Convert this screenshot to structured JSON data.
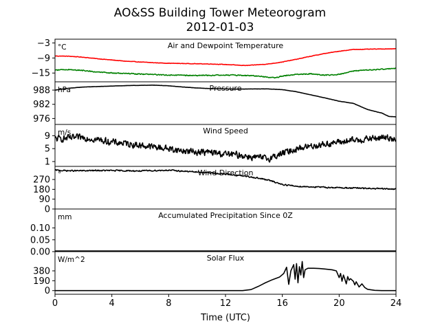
{
  "title_line1": "AO&SS Building Tower Meteorogram",
  "title_line2": "2012-01-03",
  "xlabel": "Time (UTC)",
  "chart_data": [
    {
      "id": "temp",
      "type": "line",
      "title": "Air and Dewpoint Temperature",
      "unit": "°C",
      "ylim": [
        -18.5,
        -1.5
      ],
      "yticks": [
        -15,
        -9,
        -3
      ],
      "ytick_labels": [
        "−15",
        "−9",
        "−3"
      ],
      "series": [
        {
          "color": "#ff0000",
          "noise": 0.12,
          "points": [
            [
              0,
              -8.2
            ],
            [
              1,
              -8.3
            ],
            [
              2,
              -8.7
            ],
            [
              3,
              -9.3
            ],
            [
              4,
              -9.8
            ],
            [
              5,
              -10.3
            ],
            [
              6,
              -10.6
            ],
            [
              7,
              -10.9
            ],
            [
              8,
              -11.1
            ],
            [
              9,
              -11.2
            ],
            [
              10,
              -11.3
            ],
            [
              11,
              -11.4
            ],
            [
              12,
              -11.6
            ],
            [
              13,
              -11.9
            ],
            [
              13.5,
              -12.0
            ],
            [
              14,
              -11.8
            ],
            [
              15,
              -11.4
            ],
            [
              16,
              -10.6
            ],
            [
              17,
              -9.5
            ],
            [
              18,
              -8.3
            ],
            [
              19,
              -7.2
            ],
            [
              20,
              -6.3
            ],
            [
              21,
              -5.6
            ],
            [
              22,
              -5.5
            ],
            [
              23,
              -5.4
            ],
            [
              24,
              -5.3
            ]
          ]
        },
        {
          "color": "#008000",
          "noise": 0.25,
          "points": [
            [
              0,
              -13.8
            ],
            [
              1,
              -13.6
            ],
            [
              2,
              -14.0
            ],
            [
              3,
              -14.6
            ],
            [
              4,
              -15.0
            ],
            [
              5,
              -15.2
            ],
            [
              6,
              -15.4
            ],
            [
              7,
              -15.6
            ],
            [
              8,
              -15.8
            ],
            [
              9,
              -15.9
            ],
            [
              10,
              -16.0
            ],
            [
              11,
              -15.9
            ],
            [
              12,
              -15.8
            ],
            [
              13,
              -15.9
            ],
            [
              14,
              -16.1
            ],
            [
              15,
              -16.6
            ],
            [
              15.5,
              -16.9
            ],
            [
              16,
              -16.2
            ],
            [
              17,
              -15.5
            ],
            [
              18,
              -15.3
            ],
            [
              19,
              -15.9
            ],
            [
              20,
              -15.5
            ],
            [
              21,
              -14.2
            ],
            [
              22,
              -13.8
            ],
            [
              23,
              -13.5
            ],
            [
              24,
              -13.1
            ]
          ]
        }
      ]
    },
    {
      "id": "pressure",
      "type": "line",
      "title": "Pressure",
      "unit": "hPa",
      "ylim": [
        973.5,
        991.5
      ],
      "yticks": [
        976,
        982,
        988
      ],
      "ytick_labels": [
        "976",
        "982",
        "988"
      ],
      "series": [
        {
          "color": "#000000",
          "noise": 0.05,
          "points": [
            [
              0,
              988.0
            ],
            [
              1,
              988.8
            ],
            [
              2,
              989.3
            ],
            [
              3,
              989.5
            ],
            [
              4,
              989.7
            ],
            [
              5,
              989.9
            ],
            [
              6,
              990.0
            ],
            [
              7,
              990.1
            ],
            [
              8,
              989.8
            ],
            [
              9,
              989.3
            ],
            [
              10,
              988.9
            ],
            [
              11,
              988.6
            ],
            [
              12,
              988.5
            ],
            [
              13,
              988.4
            ],
            [
              14,
              988.5
            ],
            [
              15,
              988.5
            ],
            [
              16,
              988.2
            ],
            [
              17,
              987.3
            ],
            [
              18,
              986.0
            ],
            [
              19,
              984.7
            ],
            [
              20,
              983.3
            ],
            [
              21,
              982.4
            ],
            [
              22,
              979.8
            ],
            [
              23,
              978.3
            ],
            [
              23.5,
              976.9
            ],
            [
              24,
              976.7
            ]
          ]
        }
      ]
    },
    {
      "id": "wind_speed",
      "type": "line",
      "title": "Wind Speed",
      "unit": "m/s",
      "ylim": [
        -0.5,
        12.5
      ],
      "yticks": [
        1,
        5,
        9
      ],
      "ytick_labels": [
        "1",
        "5",
        "9"
      ],
      "series": [
        {
          "color": "#000000",
          "noise": 1.4,
          "points": [
            [
              0,
              8.0
            ],
            [
              1,
              8.2
            ],
            [
              2,
              8.5
            ],
            [
              3,
              7.8
            ],
            [
              4,
              7.0
            ],
            [
              5,
              6.6
            ],
            [
              6,
              6.0
            ],
            [
              7,
              5.5
            ],
            [
              8,
              5.0
            ],
            [
              9,
              4.3
            ],
            [
              10,
              4.0
            ],
            [
              11,
              3.8
            ],
            [
              12,
              3.3
            ],
            [
              13,
              3.0
            ],
            [
              14,
              2.3
            ],
            [
              15,
              1.9
            ],
            [
              16,
              3.5
            ],
            [
              17,
              5.0
            ],
            [
              18,
              5.8
            ],
            [
              19,
              6.4
            ],
            [
              20,
              7.0
            ],
            [
              21,
              7.5
            ],
            [
              22,
              8.0
            ],
            [
              23,
              8.4
            ],
            [
              24,
              8.2
            ]
          ]
        }
      ]
    },
    {
      "id": "wind_dir",
      "type": "line",
      "title": "Wind Direction",
      "unit": "°",
      "ylim": [
        0,
        390
      ],
      "yticks": [
        0,
        90,
        180,
        270
      ],
      "ytick_labels": [
        "0",
        "90",
        "180",
        "270"
      ],
      "series": [
        {
          "color": "#000000",
          "noise": 8,
          "points": [
            [
              0,
              355
            ],
            [
              1,
              350
            ],
            [
              2,
              350
            ],
            [
              3,
              352
            ],
            [
              4,
              352
            ],
            [
              5,
              350
            ],
            [
              6,
              348
            ],
            [
              7,
              352
            ],
            [
              8,
              355
            ],
            [
              9,
              346
            ],
            [
              10,
              338
            ],
            [
              11,
              330
            ],
            [
              12,
              320
            ],
            [
              13,
              305
            ],
            [
              14,
              290
            ],
            [
              15,
              265
            ],
            [
              16,
              225
            ],
            [
              17,
              208
            ],
            [
              18,
              203
            ],
            [
              19,
              198
            ],
            [
              20,
              195
            ],
            [
              21,
              192
            ],
            [
              22,
              188
            ],
            [
              23,
              185
            ],
            [
              24,
              182
            ]
          ]
        }
      ]
    },
    {
      "id": "precip",
      "type": "line",
      "title": "Accumulated Precipitation Since 0Z",
      "unit": "mm",
      "ylim": [
        0,
        0.18
      ],
      "yticks": [
        0.0,
        0.05,
        0.1
      ],
      "ytick_labels": [
        "0.00",
        "0.05",
        "0.10"
      ],
      "series": [
        {
          "color": "#000000",
          "noise": 0,
          "points": [
            [
              0,
              0.001
            ],
            [
              24,
              0.001
            ]
          ]
        }
      ]
    },
    {
      "id": "solar",
      "type": "line",
      "title": "Solar Flux",
      "unit": "W/m^2",
      "ylim": [
        -70,
        750
      ],
      "yticks": [
        0,
        190,
        380
      ],
      "ytick_labels": [
        "0",
        "190",
        "380"
      ],
      "series": [
        {
          "color": "#000000",
          "noise": 0,
          "points": [
            [
              0,
              0
            ],
            [
              13.2,
              0
            ],
            [
              13.8,
              20
            ],
            [
              14.3,
              80
            ],
            [
              14.8,
              150
            ],
            [
              15.3,
              210
            ],
            [
              15.8,
              260
            ],
            [
              16.1,
              330
            ],
            [
              16.3,
              450
            ],
            [
              16.45,
              120
            ],
            [
              16.6,
              380
            ],
            [
              16.8,
              500
            ],
            [
              16.9,
              220
            ],
            [
              17.0,
              520
            ],
            [
              17.1,
              150
            ],
            [
              17.2,
              460
            ],
            [
              17.3,
              300
            ],
            [
              17.4,
              560
            ],
            [
              17.5,
              250
            ],
            [
              17.6,
              400
            ],
            [
              17.8,
              430
            ],
            [
              18.2,
              430
            ],
            [
              18.6,
              425
            ],
            [
              19.0,
              415
            ],
            [
              19.5,
              400
            ],
            [
              19.8,
              380
            ],
            [
              20.0,
              250
            ],
            [
              20.1,
              330
            ],
            [
              20.2,
              180
            ],
            [
              20.3,
              300
            ],
            [
              20.4,
              220
            ],
            [
              20.5,
              130
            ],
            [
              20.6,
              270
            ],
            [
              20.7,
              200
            ],
            [
              20.8,
              230
            ],
            [
              21.0,
              180
            ],
            [
              21.1,
              110
            ],
            [
              21.2,
              170
            ],
            [
              21.4,
              70
            ],
            [
              21.6,
              130
            ],
            [
              21.8,
              60
            ],
            [
              22.0,
              25
            ],
            [
              22.5,
              5
            ],
            [
              23,
              0
            ],
            [
              24,
              0
            ]
          ]
        }
      ]
    }
  ],
  "xaxis": {
    "xlim": [
      0,
      24
    ],
    "xticks": [
      0,
      4,
      8,
      12,
      16,
      20,
      24
    ],
    "xtick_labels": [
      "0",
      "4",
      "8",
      "12",
      "16",
      "20",
      "24"
    ]
  }
}
